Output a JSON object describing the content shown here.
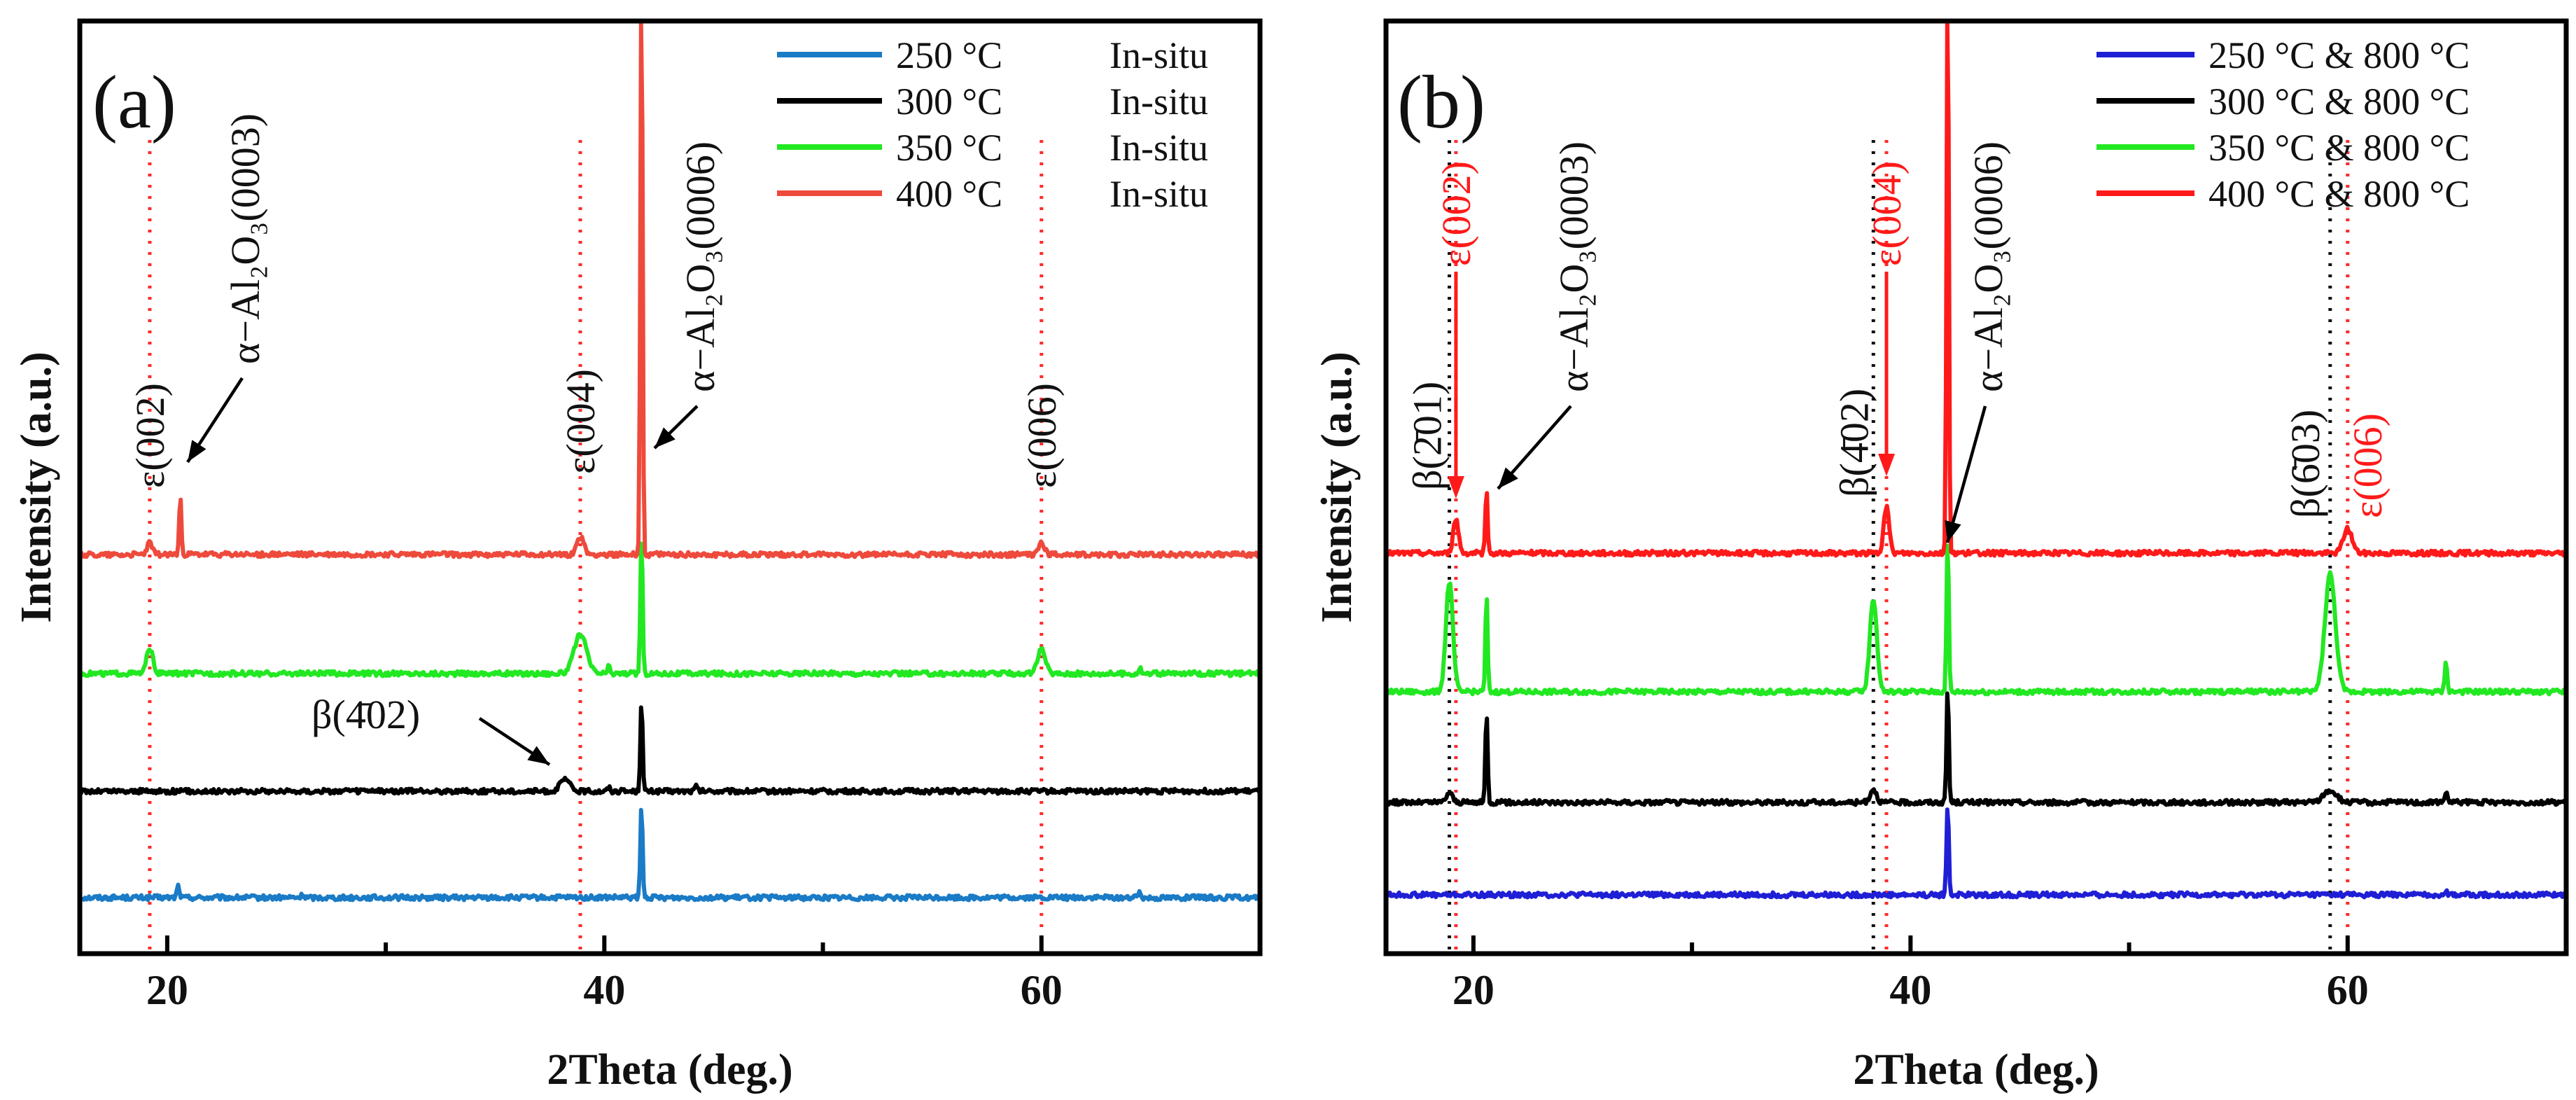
{
  "chart_data": [
    {
      "panel_label": "(a)",
      "type": "line",
      "xlabel": "2Theta (deg.)",
      "ylabel": "Intensity (a.u.)",
      "xlim": [
        16,
        70
      ],
      "x_ticks": [
        20,
        40,
        60
      ],
      "y_ticks": false,
      "legend_position": "top-right",
      "series": [
        {
          "name": "250 °C",
          "condition": "In-situ",
          "color": "#1a7bc6",
          "peaks": [
            {
              "x": 20.5,
              "h": 0.12
            },
            {
              "x": 26.2,
              "h": 0.03
            },
            {
              "x": 41.7,
              "h": 0.95,
              "w": 0.05
            },
            {
              "x": 64.5,
              "h": 0.06
            }
          ]
        },
        {
          "name": "300 °C",
          "condition": "In-situ",
          "color": "#000000",
          "peaks": [
            {
              "x": 38.2,
              "h": 0.12,
              "w": 0.22
            },
            {
              "x": 40.2,
              "h": 0.04
            },
            {
              "x": 41.7,
              "h": 0.95,
              "w": 0.05
            },
            {
              "x": 44.2,
              "h": 0.05
            }
          ]
        },
        {
          "name": "350 °C",
          "condition": "In-situ",
          "color": "#22e822",
          "peaks": [
            {
              "x": 19.2,
              "h": 0.26,
              "w": 0.14
            },
            {
              "x": 38.9,
              "h": 0.4,
              "w": 0.28
            },
            {
              "x": 40.2,
              "h": 0.07
            },
            {
              "x": 41.7,
              "h": 1.45,
              "w": 0.05
            },
            {
              "x": 60.0,
              "h": 0.24,
              "w": 0.18
            },
            {
              "x": 64.5,
              "h": 0.06
            }
          ]
        },
        {
          "name": "400 °C",
          "condition": "In-situ",
          "color": "#ee4a3c",
          "peaks": [
            {
              "x": 19.2,
              "h": 0.12,
              "w": 0.12
            },
            {
              "x": 20.6,
              "h": 0.6,
              "w": 0.05
            },
            {
              "x": 38.9,
              "h": 0.18,
              "w": 0.16
            },
            {
              "x": 41.7,
              "h": 6.0,
              "w": 0.05
            },
            {
              "x": 60.0,
              "h": 0.12,
              "w": 0.14
            }
          ]
        }
      ],
      "guide_lines": [
        {
          "x": 19.2,
          "color": "#ff2a2a"
        },
        {
          "x": 38.9,
          "color": "#ff2a2a"
        },
        {
          "x": 60.0,
          "color": "#ff2a2a"
        }
      ],
      "annotations": [
        {
          "text": "ε(002)",
          "x": 19.2,
          "color": "#111111",
          "kind": "vertical"
        },
        {
          "text": "α−Al₂O₃(0003)",
          "x": 20.6,
          "color": "#111111",
          "kind": "arrow-label"
        },
        {
          "text": "ε(004)",
          "x": 38.9,
          "color": "#111111",
          "kind": "vertical"
        },
        {
          "text": "α−Al₂O₃(0006)",
          "x": 41.7,
          "color": "#111111",
          "kind": "arrow-label"
        },
        {
          "text": "ε(006)",
          "x": 60.0,
          "color": "#111111",
          "kind": "vertical"
        },
        {
          "text": "β(4̄02)",
          "x": 38.2,
          "color": "#111111",
          "kind": "horizontal-arrow"
        }
      ]
    },
    {
      "panel_label": "(b)",
      "type": "line",
      "xlabel": "2Theta (deg.)",
      "ylabel": "Intensity (a.u.)",
      "xlim": [
        16,
        70
      ],
      "x_ticks": [
        20,
        40,
        60
      ],
      "y_ticks": false,
      "legend_position": "top-right",
      "series": [
        {
          "name": "250 °C & 800 °C",
          "condition": "",
          "color": "#1f1fd6",
          "peaks": [
            {
              "x": 41.7,
              "h": 0.95,
              "w": 0.05
            },
            {
              "x": 64.5,
              "h": 0.04
            }
          ]
        },
        {
          "name": "300 °C & 800 °C",
          "condition": "",
          "color": "#000000",
          "peaks": [
            {
              "x": 18.9,
              "h": 0.1,
              "w": 0.14
            },
            {
              "x": 20.6,
              "h": 0.95,
              "w": 0.05
            },
            {
              "x": 38.3,
              "h": 0.14,
              "w": 0.14
            },
            {
              "x": 41.7,
              "h": 1.2,
              "w": 0.05
            },
            {
              "x": 59.2,
              "h": 0.12,
              "w": 0.3
            },
            {
              "x": 64.5,
              "h": 0.12
            }
          ]
        },
        {
          "name": "350 °C & 800 °C",
          "condition": "",
          "color": "#22e822",
          "peaks": [
            {
              "x": 18.9,
              "h": 1.12,
              "w": 0.16
            },
            {
              "x": 20.6,
              "h": 1.0,
              "w": 0.05
            },
            {
              "x": 38.3,
              "h": 0.95,
              "w": 0.16
            },
            {
              "x": 41.7,
              "h": 1.6,
              "w": 0.05
            },
            {
              "x": 59.2,
              "h": 1.2,
              "w": 0.24
            },
            {
              "x": 64.5,
              "h": 0.3
            }
          ]
        },
        {
          "name": "400 °C & 800 °C",
          "condition": "",
          "color": "#ff1a1a",
          "peaks": [
            {
              "x": 19.2,
              "h": 0.35,
              "w": 0.12
            },
            {
              "x": 20.6,
              "h": 0.65,
              "w": 0.05
            },
            {
              "x": 38.9,
              "h": 0.48,
              "w": 0.12
            },
            {
              "x": 41.7,
              "h": 6.0,
              "w": 0.05
            },
            {
              "x": 60.0,
              "h": 0.25,
              "w": 0.2
            }
          ]
        }
      ],
      "guide_lines": [
        {
          "x": 18.9,
          "color": "#111111"
        },
        {
          "x": 19.2,
          "color": "#ff2a2a"
        },
        {
          "x": 38.3,
          "color": "#111111"
        },
        {
          "x": 38.9,
          "color": "#ff2a2a"
        },
        {
          "x": 59.2,
          "color": "#111111"
        },
        {
          "x": 60.0,
          "color": "#ff2a2a"
        }
      ],
      "annotations": [
        {
          "text": "β(2̄01)",
          "x": 18.9,
          "color": "#111111",
          "kind": "vertical"
        },
        {
          "text": "ε(002)",
          "x": 19.2,
          "color": "#ff1a1a",
          "kind": "vertical-arrow"
        },
        {
          "text": "α−Al₂O₃(0003)",
          "x": 20.6,
          "color": "#111111",
          "kind": "arrow-label"
        },
        {
          "text": "β(4̄02)",
          "x": 38.3,
          "color": "#111111",
          "kind": "vertical"
        },
        {
          "text": "ε(004)",
          "x": 38.9,
          "color": "#ff1a1a",
          "kind": "vertical-arrow"
        },
        {
          "text": "α−Al₂O₃(0006)",
          "x": 41.7,
          "color": "#111111",
          "kind": "arrow-label"
        },
        {
          "text": "β(6̄03)",
          "x": 59.2,
          "color": "#111111",
          "kind": "vertical"
        },
        {
          "text": "ε(006)",
          "x": 60.0,
          "color": "#ff1a1a",
          "kind": "vertical"
        }
      ]
    }
  ]
}
